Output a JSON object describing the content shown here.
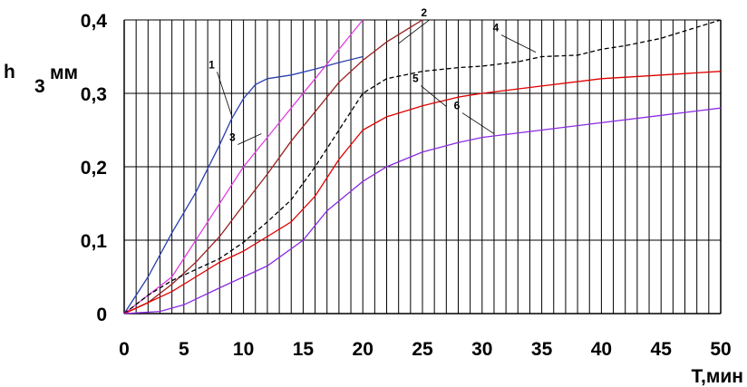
{
  "chart_data": {
    "type": "line",
    "title": "",
    "xlabel": "T,мин",
    "ylabel_letter": "h",
    "ylabel_subscript": "3",
    "ylabel_unit": "мм",
    "xlim": [
      0,
      50
    ],
    "ylim": [
      0,
      0.4
    ],
    "x_ticks": [
      0,
      5,
      10,
      15,
      20,
      25,
      30,
      35,
      40,
      45,
      50
    ],
    "x_tick_labels": [
      "0",
      "5",
      "10",
      "15",
      "20",
      "25",
      "30",
      "35",
      "40",
      "45",
      "50"
    ],
    "y_ticks": [
      0,
      0.1,
      0.2,
      0.3,
      0.4
    ],
    "y_tick_labels": [
      "0",
      "0,1",
      "0,2",
      "0,3",
      "0,4"
    ],
    "grid": true,
    "series": [
      {
        "name": "1",
        "color": "#2a3fb0",
        "dash": "solid",
        "x": [
          0,
          2,
          4,
          6,
          8,
          9,
          10,
          11,
          12,
          14,
          16,
          18,
          20
        ],
        "y": [
          0,
          0.05,
          0.11,
          0.165,
          0.23,
          0.265,
          0.293,
          0.312,
          0.32,
          0.325,
          0.333,
          0.342,
          0.35
        ]
      },
      {
        "name": "3",
        "color": "#e040e0",
        "dash": "solid",
        "x": [
          0,
          2,
          4,
          6,
          8,
          10,
          12,
          14,
          16,
          18,
          20
        ],
        "y": [
          0,
          0.025,
          0.05,
          0.1,
          0.15,
          0.2,
          0.24,
          0.28,
          0.32,
          0.36,
          0.4
        ]
      },
      {
        "name": "2",
        "color": "#9a2020",
        "dash": "solid",
        "x": [
          0,
          2,
          4,
          6,
          8,
          10,
          12,
          14,
          16,
          18,
          20,
          22,
          24,
          25
        ],
        "y": [
          0,
          0.015,
          0.04,
          0.07,
          0.105,
          0.148,
          0.19,
          0.235,
          0.275,
          0.315,
          0.345,
          0.37,
          0.39,
          0.4
        ]
      },
      {
        "name": "4",
        "color": "#000000",
        "dash": "dashed",
        "x": [
          0,
          2,
          4,
          6,
          8,
          10,
          12,
          14,
          16,
          18,
          20,
          22,
          25,
          28,
          30,
          33,
          35,
          38,
          40,
          42,
          45,
          47,
          50
        ],
        "y": [
          0,
          0.025,
          0.045,
          0.06,
          0.075,
          0.097,
          0.125,
          0.155,
          0.2,
          0.25,
          0.3,
          0.32,
          0.33,
          0.335,
          0.337,
          0.343,
          0.35,
          0.352,
          0.36,
          0.365,
          0.375,
          0.385,
          0.4
        ]
      },
      {
        "name": "5",
        "color": "#e00000",
        "dash": "solid",
        "x": [
          0,
          2,
          4,
          6,
          8,
          10,
          12,
          14,
          16,
          18,
          20,
          22,
          25,
          28,
          30,
          35,
          40,
          45,
          50
        ],
        "y": [
          0,
          0.015,
          0.03,
          0.05,
          0.07,
          0.085,
          0.105,
          0.125,
          0.16,
          0.21,
          0.25,
          0.268,
          0.283,
          0.295,
          0.3,
          0.31,
          0.32,
          0.325,
          0.33
        ]
      },
      {
        "name": "6",
        "color": "#8a2be2",
        "dash": "solid",
        "x": [
          0,
          3,
          5,
          8,
          10,
          12,
          15,
          17,
          20,
          22,
          25,
          28,
          30,
          35,
          40,
          45,
          50
        ],
        "y": [
          0,
          0.003,
          0.012,
          0.035,
          0.05,
          0.065,
          0.1,
          0.14,
          0.18,
          0.2,
          0.22,
          0.233,
          0.24,
          0.25,
          0.26,
          0.27,
          0.28
        ]
      }
    ],
    "curve_labels": [
      {
        "text": "1",
        "series": "1",
        "x": 9,
        "y": 0.27
      },
      {
        "text": "3",
        "series": "3",
        "x": 11.5,
        "y": 0.245
      },
      {
        "text": "2",
        "series": "2",
        "x": 23,
        "y": 0.368
      },
      {
        "text": "4",
        "series": "4",
        "x": 34.5,
        "y": 0.356
      },
      {
        "text": "5",
        "series": "5",
        "x": 27,
        "y": 0.282
      },
      {
        "text": "6",
        "series": "6",
        "x": 31,
        "y": 0.245
      }
    ]
  }
}
